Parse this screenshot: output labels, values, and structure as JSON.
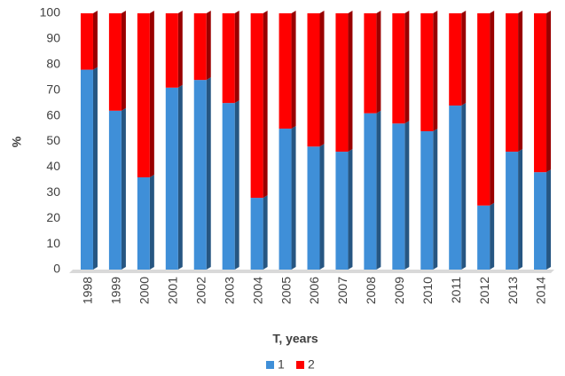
{
  "chart_data": {
    "type": "stacked_bar",
    "x_label": "T, years",
    "y_label": "%",
    "categories": [
      "1998",
      "1999",
      "2000",
      "2001",
      "2002",
      "2003",
      "2004",
      "2005",
      "2006",
      "2007",
      "2008",
      "2009",
      "2010",
      "2011",
      "2012",
      "2013",
      "2014"
    ],
    "series": [
      {
        "name": "1",
        "color": "#3f8fd8",
        "values": [
          78,
          62,
          36,
          71,
          74,
          65,
          28,
          55,
          48,
          46,
          61,
          57,
          54,
          64,
          25,
          46,
          38
        ]
      },
      {
        "name": "2",
        "color": "#ff0000",
        "values": [
          22,
          38,
          64,
          29,
          26,
          35,
          72,
          45,
          52,
          54,
          39,
          43,
          46,
          36,
          75,
          54,
          62
        ]
      }
    ],
    "ylim": [
      0,
      100
    ],
    "yticks": [
      0,
      10,
      20,
      30,
      40,
      50,
      60,
      70,
      80,
      90,
      100
    ],
    "legend": "bottom"
  }
}
